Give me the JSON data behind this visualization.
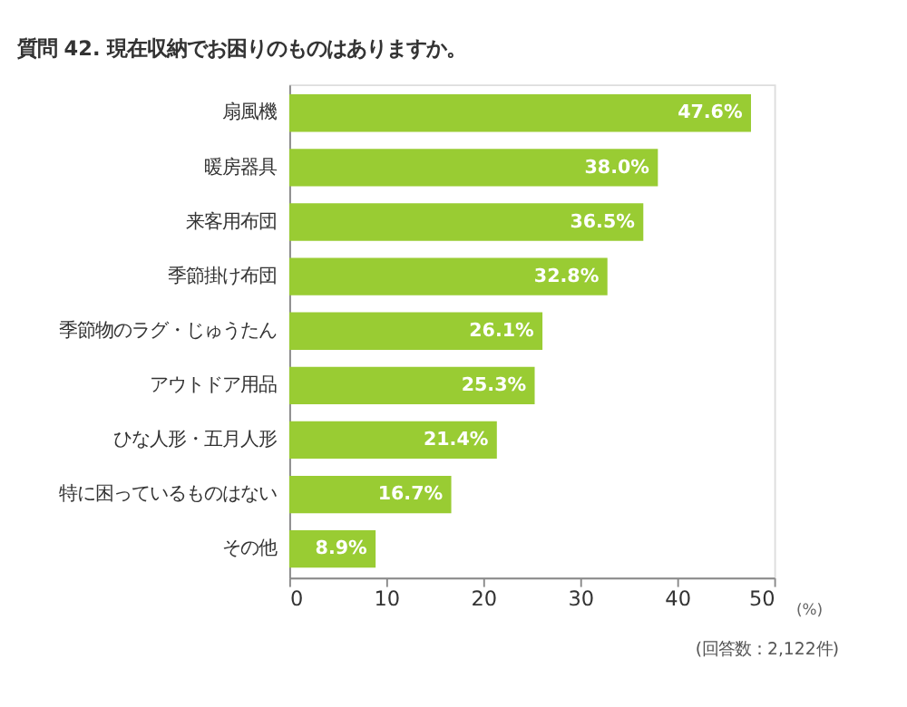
{
  "chart_data": {
    "type": "bar",
    "orientation": "horizontal",
    "title": "質問 42. 現在収納でお困りのものはありますか。",
    "xlabel": "(%)",
    "categories": [
      "扇風機",
      "暖房器具",
      "来客用布団",
      "季節掛け布団",
      "季節物のラグ・じゅうたん",
      "アウトドア用品",
      "ひな人形・五月人形",
      "特に困っているものはない",
      "その他"
    ],
    "values": [
      47.6,
      38.0,
      36.5,
      32.8,
      26.1,
      25.3,
      21.4,
      16.7,
      8.9
    ],
    "value_labels": [
      "47.6%",
      "38.0%",
      "36.5%",
      "32.8%",
      "26.1%",
      "25.3%",
      "21.4%",
      "16.7%",
      "8.9%"
    ],
    "color": "#99cc33",
    "xlim": [
      0,
      50
    ],
    "xticks": [
      0,
      10,
      20,
      30,
      40,
      50
    ],
    "annotations": [
      "(回答数：2,122件)"
    ]
  }
}
